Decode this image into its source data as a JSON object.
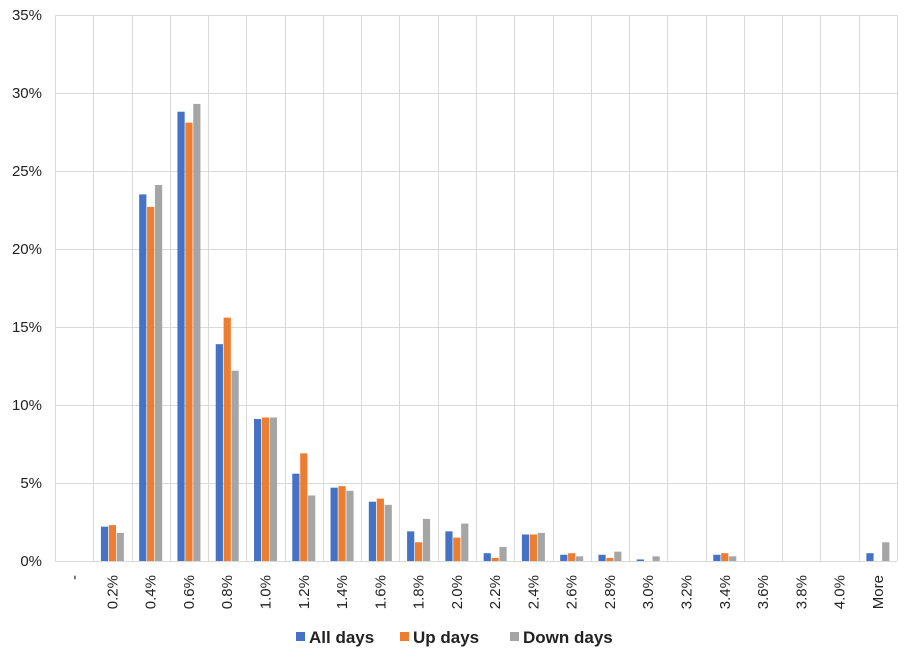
{
  "chart_data": {
    "type": "bar",
    "categories": [
      "-",
      "0.2%",
      "0.4%",
      "0.6%",
      "0.8%",
      "1.0%",
      "1.2%",
      "1.4%",
      "1.6%",
      "1.8%",
      "2.0%",
      "2.2%",
      "2.4%",
      "2.6%",
      "2.8%",
      "3.0%",
      "3.2%",
      "3.4%",
      "3.6%",
      "3.8%",
      "4.0%",
      "More"
    ],
    "series": [
      {
        "name": "All days",
        "color": "#4472C4",
        "values": [
          0,
          2.2,
          23.5,
          28.8,
          13.9,
          9.1,
          5.6,
          4.7,
          3.8,
          1.9,
          1.9,
          0.5,
          1.7,
          0.4,
          0.4,
          0.1,
          0,
          0.4,
          0,
          0,
          0,
          0.5
        ]
      },
      {
        "name": "Up days",
        "color": "#ED7D31",
        "values": [
          0,
          2.3,
          22.7,
          28.1,
          15.6,
          9.2,
          6.9,
          4.8,
          4.0,
          1.2,
          1.5,
          0.2,
          1.7,
          0.5,
          0.2,
          0,
          0,
          0.5,
          0,
          0,
          0,
          0
        ]
      },
      {
        "name": "Down days",
        "color": "#A5A5A5",
        "values": [
          0,
          1.8,
          24.1,
          29.3,
          12.2,
          9.2,
          4.2,
          4.5,
          3.6,
          2.7,
          2.4,
          0.9,
          1.8,
          0.3,
          0.6,
          0.3,
          0,
          0.3,
          0,
          0,
          0,
          1.2
        ]
      }
    ],
    "y_ticks": [
      "0%",
      "5%",
      "10%",
      "15%",
      "20%",
      "25%",
      "30%",
      "35%"
    ],
    "ylim": [
      0,
      35
    ],
    "grid": true,
    "legend_position": "bottom-center",
    "xlabel": "",
    "ylabel": ""
  }
}
